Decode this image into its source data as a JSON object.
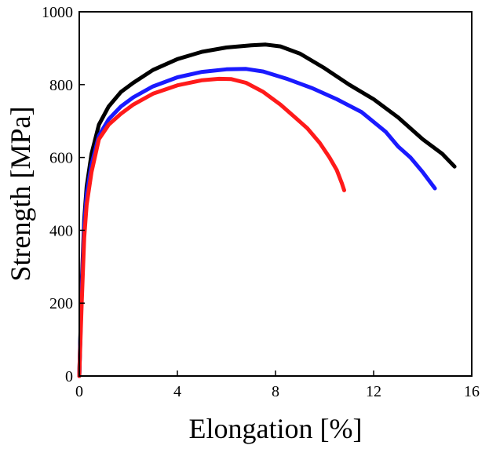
{
  "chart_data": {
    "type": "line",
    "title": "",
    "xlabel": "Elongation [%]",
    "ylabel": "Strength [MPa]",
    "xlim": [
      0,
      16
    ],
    "ylim": [
      0,
      1000
    ],
    "xticks": [
      0,
      4,
      8,
      12,
      16
    ],
    "yticks": [
      0,
      200,
      400,
      600,
      800,
      1000
    ],
    "xtick_labels": [
      "0",
      "4",
      "8",
      "12",
      "16"
    ],
    "ytick_labels": [
      "0",
      "200",
      "400",
      "600",
      "800",
      "1000"
    ],
    "grid": false,
    "legend": "none",
    "series": [
      {
        "color": "#000000",
        "x": [
          0,
          0.1,
          0.2,
          0.3,
          0.5,
          0.8,
          1.2,
          1.7,
          2.2,
          3.0,
          4.0,
          5.0,
          6.0,
          7.0,
          7.6,
          8.2,
          9.0,
          10.0,
          11.0,
          12.0,
          13.0,
          14.0,
          14.8,
          15.3
        ],
        "y": [
          0,
          250,
          430,
          520,
          610,
          690,
          740,
          780,
          805,
          840,
          870,
          890,
          902,
          908,
          910,
          905,
          885,
          845,
          800,
          760,
          710,
          650,
          610,
          575
        ]
      },
      {
        "color": "#1a1aff",
        "x": [
          0,
          0.1,
          0.2,
          0.3,
          0.5,
          0.8,
          1.2,
          1.7,
          2.2,
          3.0,
          4.0,
          5.0,
          6.0,
          6.8,
          7.5,
          8.5,
          9.5,
          10.5,
          11.5,
          12.5,
          13.0,
          13.5,
          14.0,
          14.5
        ],
        "y": [
          0,
          230,
          410,
          500,
          580,
          660,
          705,
          740,
          765,
          795,
          820,
          835,
          842,
          843,
          836,
          815,
          790,
          760,
          725,
          670,
          630,
          600,
          560,
          515
        ]
      },
      {
        "color": "#ff1a1a",
        "x": [
          0,
          0.1,
          0.2,
          0.3,
          0.5,
          0.8,
          1.2,
          1.7,
          2.2,
          3.0,
          4.0,
          5.0,
          5.7,
          6.2,
          6.8,
          7.5,
          8.2,
          8.8,
          9.3,
          9.8,
          10.2,
          10.5,
          10.7,
          10.8
        ],
        "y": [
          0,
          200,
          380,
          470,
          560,
          650,
          690,
          720,
          745,
          775,
          798,
          812,
          816,
          815,
          805,
          780,
          745,
          710,
          680,
          640,
          600,
          565,
          530,
          510
        ]
      }
    ]
  }
}
